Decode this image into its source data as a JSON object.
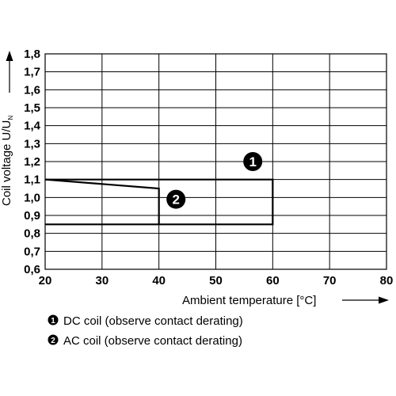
{
  "chart_data": {
    "type": "line",
    "xlabel": "Ambient temperature [°C]",
    "ylabel_main": "Coil voltage U/U",
    "ylabel_sub": "N",
    "xlim": [
      20,
      80
    ],
    "ylim": [
      0.6,
      1.8
    ],
    "x_ticks": [
      "20",
      "30",
      "40",
      "50",
      "60",
      "70",
      "80"
    ],
    "y_ticks": [
      "0,6",
      "0,7",
      "0,8",
      "0,9",
      "1,0",
      "1,1",
      "1,2",
      "1,3",
      "1,4",
      "1,5",
      "1,6",
      "1,7",
      "1,8"
    ],
    "grid": true,
    "series": [
      {
        "marker": "1",
        "name": "DC coil (observe contact derating)",
        "points": [
          [
            20,
            1.1
          ],
          [
            60,
            1.1
          ],
          [
            60,
            0.85
          ],
          [
            20,
            0.85
          ]
        ],
        "marker_at": [
          56.5,
          1.2
        ]
      },
      {
        "marker": "2",
        "name": "AC coil (observe contact derating)",
        "points": [
          [
            20,
            1.1
          ],
          [
            40,
            1.05
          ],
          [
            40,
            0.85
          ]
        ],
        "marker_at": [
          43,
          0.99
        ]
      }
    ],
    "legend": {
      "placement": "bottom-left",
      "items": [
        {
          "marker": "1",
          "text": "DC coil (observe contact derating)"
        },
        {
          "marker": "2",
          "text": "AC coil (observe contact derating)"
        }
      ]
    },
    "colors": {
      "line": "#000000",
      "grid": "#000000",
      "marker_fill": "#000000",
      "marker_text": "#ffffff"
    }
  }
}
